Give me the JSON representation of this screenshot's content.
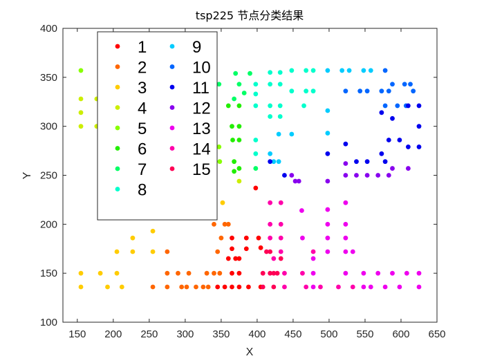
{
  "chart_data": {
    "type": "scatter",
    "title": "tsp225 节点分类结果",
    "xlabel": "X",
    "ylabel": "Y",
    "xlim": [
      130,
      650
    ],
    "ylim": [
      100,
      400
    ],
    "xticks": [
      150,
      200,
      250,
      300,
      350,
      400,
      450,
      500,
      550,
      600,
      650
    ],
    "yticks": [
      100,
      150,
      200,
      250,
      300,
      350,
      400
    ],
    "grid": false,
    "legend_position": "upper-left",
    "legend_columns": 2,
    "series": [
      {
        "name": "1",
        "color": "#ff0000",
        "points": [
          [
            355,
            136
          ],
          [
            365,
            136
          ],
          [
            375,
            136
          ],
          [
            388,
            136
          ],
          [
            405,
            136
          ],
          [
            365,
            150
          ],
          [
            375,
            150
          ],
          [
            345,
            136
          ],
          [
            360,
            165
          ],
          [
            365,
            175
          ],
          [
            370,
            165
          ],
          [
            375,
            165
          ],
          [
            365,
            186
          ],
          [
            385,
            186
          ],
          [
            385,
            175
          ],
          [
            402,
            186
          ],
          [
            405,
            176
          ],
          [
            398,
            237
          ]
        ]
      },
      {
        "name": "2",
        "color": "#ff6600",
        "points": [
          [
            255,
            136
          ],
          [
            275,
            136
          ],
          [
            295,
            136
          ],
          [
            302,
            136
          ],
          [
            315,
            136
          ],
          [
            325,
            136
          ],
          [
            332,
            136
          ],
          [
            275,
            150
          ],
          [
            290,
            150
          ],
          [
            305,
            150
          ],
          [
            330,
            150
          ],
          [
            340,
            150
          ],
          [
            348,
            150
          ],
          [
            275,
            172
          ],
          [
            340,
            200
          ],
          [
            355,
            200
          ],
          [
            360,
            200
          ],
          [
            350,
            186
          ],
          [
            345,
            172
          ]
        ]
      },
      {
        "name": "3",
        "color": "#ffcc00",
        "points": [
          [
            155,
            136
          ],
          [
            192,
            136
          ],
          [
            212,
            136
          ],
          [
            155,
            150
          ],
          [
            182,
            150
          ],
          [
            205,
            150
          ],
          [
            205,
            172
          ],
          [
            227,
            172
          ],
          [
            227,
            186
          ],
          [
            255,
            172
          ],
          [
            255,
            193
          ],
          [
            352,
            222
          ]
        ]
      },
      {
        "name": "4",
        "color": "#ccee00",
        "points": [
          [
            155,
            300
          ],
          [
            177,
            300
          ],
          [
            155,
            314
          ],
          [
            155,
            328
          ],
          [
            177,
            328
          ],
          [
            375,
            244
          ]
        ]
      },
      {
        "name": "5",
        "color": "#88ff00",
        "points": [
          [
            155,
            357
          ],
          [
            347,
            279
          ],
          [
            348,
            264
          ]
        ]
      },
      {
        "name": "6",
        "color": "#22ee00",
        "points": [
          [
            368,
            254
          ],
          [
            375,
            257
          ],
          [
            368,
            264
          ],
          [
            366,
            286
          ],
          [
            375,
            286
          ],
          [
            365,
            300
          ],
          [
            375,
            300
          ],
          [
            360,
            321
          ],
          [
            375,
            321
          ]
        ]
      },
      {
        "name": "7",
        "color": "#00ff66",
        "points": [
          [
            347,
            343
          ],
          [
            370,
            354
          ],
          [
            390,
            354
          ],
          [
            375,
            343
          ],
          [
            382,
            334
          ],
          [
            368,
            328
          ],
          [
            398,
            257
          ]
        ]
      },
      {
        "name": "8",
        "color": "#00ffcc",
        "points": [
          [
            398,
            272
          ],
          [
            398,
            286
          ],
          [
            398,
            321
          ],
          [
            398,
            333
          ],
          [
            398,
            343
          ],
          [
            418,
            343
          ],
          [
            418,
            355
          ],
          [
            432,
            355
          ],
          [
            448,
            357
          ],
          [
            468,
            357
          ],
          [
            478,
            336
          ],
          [
            468,
            336
          ],
          [
            448,
            336
          ],
          [
            432,
            343
          ],
          [
            432,
            321
          ],
          [
            418,
            321
          ],
          [
            418,
            310
          ],
          [
            432,
            310
          ],
          [
            465,
            321
          ],
          [
            478,
            357
          ]
        ]
      },
      {
        "name": "9",
        "color": "#00ccff",
        "points": [
          [
            418,
            272
          ],
          [
            423,
            264
          ],
          [
            430,
            264
          ],
          [
            430,
            292
          ],
          [
            448,
            292
          ],
          [
            498,
            293
          ],
          [
            498,
            316
          ],
          [
            498,
            357
          ],
          [
            518,
            357
          ],
          [
            528,
            357
          ],
          [
            548,
            357
          ],
          [
            558,
            357
          ]
        ]
      },
      {
        "name": "10",
        "color": "#0066ff",
        "points": [
          [
            523,
            336
          ],
          [
            543,
            336
          ],
          [
            553,
            336
          ],
          [
            573,
            336
          ],
          [
            578,
            321
          ],
          [
            578,
            357
          ],
          [
            583,
            336
          ],
          [
            588,
            343
          ],
          [
            605,
            343
          ],
          [
            613,
            343
          ],
          [
            617,
            336
          ],
          [
            607,
            321
          ],
          [
            595,
            321
          ]
        ]
      },
      {
        "name": "11",
        "color": "#0000ee",
        "points": [
          [
            418,
            264
          ],
          [
            438,
            250
          ],
          [
            498,
            272
          ],
          [
            523,
            282
          ],
          [
            538,
            264
          ],
          [
            553,
            264
          ],
          [
            573,
            272
          ],
          [
            578,
            264
          ],
          [
            583,
            286
          ],
          [
            598,
            286
          ],
          [
            610,
            279
          ],
          [
            625,
            279
          ],
          [
            625,
            300
          ],
          [
            625,
            321
          ],
          [
            610,
            321
          ],
          [
            588,
            308
          ],
          [
            573,
            314
          ]
        ]
      },
      {
        "name": "12",
        "color": "#8800ee",
        "points": [
          [
            448,
            250
          ],
          [
            453,
            244
          ],
          [
            458,
            244
          ],
          [
            498,
            244
          ],
          [
            523,
            262
          ],
          [
            523,
            250
          ],
          [
            538,
            250
          ],
          [
            553,
            250
          ],
          [
            568,
            250
          ],
          [
            583,
            250
          ],
          [
            588,
            257
          ],
          [
            610,
            257
          ]
        ]
      },
      {
        "name": "13",
        "color": "#ee00ee",
        "points": [
          [
            523,
            222
          ],
          [
            498,
            215
          ],
          [
            498,
            200
          ],
          [
            498,
            186
          ],
          [
            498,
            172
          ],
          [
            523,
            186
          ],
          [
            523,
            200
          ],
          [
            523,
            172
          ],
          [
            523,
            150
          ],
          [
            548,
            136
          ],
          [
            558,
            136
          ],
          [
            578,
            136
          ],
          [
            598,
            136
          ],
          [
            625,
            136
          ],
          [
            548,
            150
          ],
          [
            568,
            150
          ],
          [
            588,
            150
          ],
          [
            608,
            150
          ],
          [
            625,
            150
          ],
          [
            533,
            172
          ],
          [
            462,
            214
          ],
          [
            463,
            186
          ],
          [
            478,
            165
          ],
          [
            478,
            150
          ],
          [
            478,
            136
          ]
        ]
      },
      {
        "name": "14",
        "color": "#ff00aa",
        "points": [
          [
            438,
            136
          ],
          [
            468,
            136
          ],
          [
            488,
            136
          ],
          [
            513,
            136
          ],
          [
            533,
            136
          ],
          [
            463,
            150
          ],
          [
            478,
            172
          ],
          [
            438,
            150
          ],
          [
            433,
            186
          ],
          [
            433,
            200
          ],
          [
            433,
            222
          ],
          [
            418,
            222
          ],
          [
            418,
            200
          ],
          [
            418,
            186
          ],
          [
            433,
            172
          ],
          [
            423,
            165
          ]
        ]
      },
      {
        "name": "15",
        "color": "#ff0055",
        "points": [
          [
            408,
            136
          ],
          [
            423,
            136
          ],
          [
            408,
            150
          ],
          [
            423,
            150
          ],
          [
            433,
            165
          ],
          [
            413,
            172
          ],
          [
            418,
            172
          ],
          [
            418,
            150
          ],
          [
            428,
            150
          ]
        ]
      }
    ]
  }
}
